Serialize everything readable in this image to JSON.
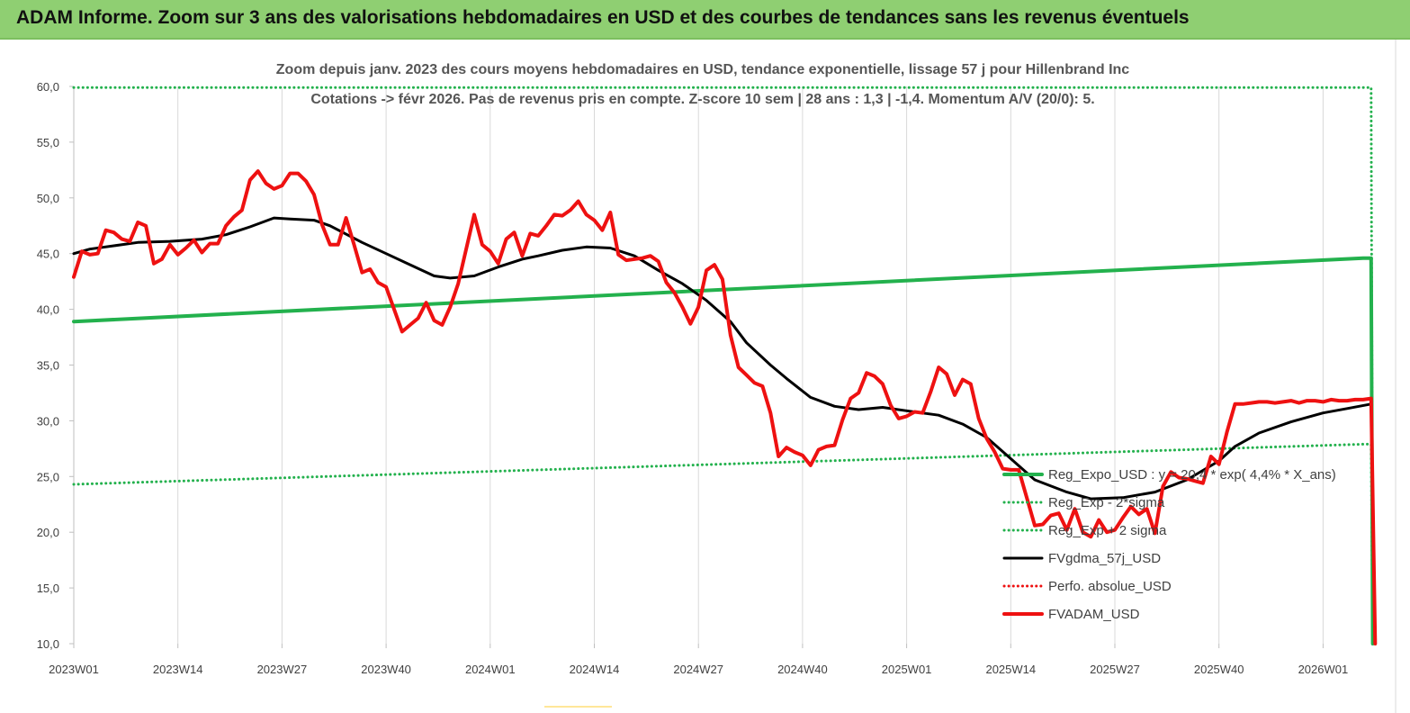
{
  "header": {
    "title": "ADAM Informe. Zoom sur 3 ans des valorisations hebdomadaires en USD et des courbes de tendances sans les revenus éventuels"
  },
  "chart_data": {
    "type": "line",
    "title_line1": "Zoom depuis janv. 2023 des cours moyens hebdomadaires en USD, tendance exponentielle, lissage 57 j pour Hillenbrand Inc",
    "title_line2": "Cotations -> févr 2026.  Pas de revenus pris en compte. Z-score 10 sem  | 28 ans : 1,3 | -1,4. Momentum A/V (20/0): 5.",
    "x_tick_labels": [
      "2023W01",
      "2023W14",
      "2023W27",
      "2023W40",
      "2024W01",
      "2024W14",
      "2024W27",
      "2024W40",
      "2025W01",
      "2025W14",
      "2025W27",
      "2025W40",
      "2026W01"
    ],
    "y_tick_labels": [
      "10,0",
      "15,0",
      "20,0",
      "25,0",
      "30,0",
      "35,0",
      "40,0",
      "45,0",
      "50,0",
      "55,0",
      "60,0"
    ],
    "ylim": [
      10,
      60
    ],
    "x_unit": "week index from 2023W01",
    "grid": "vertical",
    "legend_position": "bottom-right",
    "colors": {
      "green": "#23b14d",
      "black": "#000000",
      "red": "#ee1111",
      "header": "#8fcf72"
    },
    "series": [
      {
        "name": "Reg_Expo_USD : y = 20,4 * exp( 4,4% *  X_ans)",
        "style": "solid-thick",
        "color": "#23b14d",
        "points": [
          [
            0,
            38.9
          ],
          [
            161,
            44.6
          ],
          [
            162,
            44.6
          ],
          [
            162.2,
            10.0
          ]
        ]
      },
      {
        "name": "Reg_Exp - 2*sigma",
        "style": "dotted",
        "color": "#23b14d",
        "points": [
          [
            0,
            24.3
          ],
          [
            161,
            27.9
          ],
          [
            162,
            27.9
          ],
          [
            162.2,
            10.0
          ]
        ]
      },
      {
        "name": "Reg_Exp + 2 sigma",
        "style": "dotted",
        "color": "#23b14d",
        "points": [
          [
            0,
            59.9
          ],
          [
            162,
            59.9
          ],
          [
            162.2,
            10.0
          ]
        ]
      },
      {
        "name": "FVgdma_57j_USD",
        "style": "solid",
        "color": "#000000",
        "points": [
          [
            0,
            45.0
          ],
          [
            2,
            45.4
          ],
          [
            5,
            45.7
          ],
          [
            8,
            46.0
          ],
          [
            12,
            46.1
          ],
          [
            16,
            46.3
          ],
          [
            19,
            46.7
          ],
          [
            22,
            47.4
          ],
          [
            25,
            48.2
          ],
          [
            27,
            48.1
          ],
          [
            30,
            48.0
          ],
          [
            32,
            47.5
          ],
          [
            36,
            46.0
          ],
          [
            39,
            45.0
          ],
          [
            42,
            44.0
          ],
          [
            45,
            43.0
          ],
          [
            47,
            42.8
          ],
          [
            50,
            43.0
          ],
          [
            53,
            43.8
          ],
          [
            56,
            44.5
          ],
          [
            58,
            44.8
          ],
          [
            61,
            45.3
          ],
          [
            64,
            45.6
          ],
          [
            67,
            45.5
          ],
          [
            70,
            44.8
          ],
          [
            73,
            43.5
          ],
          [
            76,
            42.3
          ],
          [
            79,
            40.8
          ],
          [
            82,
            38.9
          ],
          [
            84,
            37.0
          ],
          [
            87,
            35.0
          ],
          [
            89,
            33.8
          ],
          [
            92,
            32.1
          ],
          [
            95,
            31.3
          ],
          [
            98,
            31.0
          ],
          [
            101,
            31.2
          ],
          [
            104,
            30.9
          ],
          [
            108,
            30.5
          ],
          [
            111,
            29.7
          ],
          [
            114,
            28.5
          ],
          [
            117,
            26.6
          ],
          [
            120,
            24.7
          ],
          [
            124,
            23.6
          ],
          [
            127,
            23.0
          ],
          [
            131,
            23.1
          ],
          [
            135,
            23.6
          ],
          [
            139,
            24.7
          ],
          [
            143,
            26.4
          ],
          [
            145,
            27.7
          ],
          [
            148,
            28.9
          ],
          [
            152,
            29.9
          ],
          [
            156,
            30.7
          ],
          [
            159,
            31.1
          ],
          [
            162,
            31.5
          ]
        ]
      },
      {
        "name": "Perfo. absolue_USD",
        "style": "dotted",
        "color": "#ee1111",
        "points": []
      },
      {
        "name": "FVADAM_USD",
        "style": "solid-thick",
        "color": "#ee1111",
        "points": [
          [
            0,
            42.9
          ],
          [
            1,
            45.2
          ],
          [
            2,
            44.9
          ],
          [
            3,
            45.0
          ],
          [
            4,
            47.1
          ],
          [
            5,
            46.9
          ],
          [
            6,
            46.3
          ],
          [
            7,
            46.1
          ],
          [
            8,
            47.8
          ],
          [
            9,
            47.5
          ],
          [
            10,
            44.1
          ],
          [
            11,
            44.5
          ],
          [
            12,
            45.8
          ],
          [
            13,
            44.9
          ],
          [
            14,
            45.5
          ],
          [
            15,
            46.2
          ],
          [
            16,
            45.1
          ],
          [
            17,
            45.9
          ],
          [
            18,
            45.9
          ],
          [
            19,
            47.5
          ],
          [
            20,
            48.3
          ],
          [
            21,
            48.9
          ],
          [
            22,
            51.6
          ],
          [
            23,
            52.4
          ],
          [
            24,
            51.3
          ],
          [
            25,
            50.8
          ],
          [
            26,
            51.1
          ],
          [
            27,
            52.2
          ],
          [
            28,
            52.2
          ],
          [
            29,
            51.5
          ],
          [
            30,
            50.3
          ],
          [
            31,
            47.6
          ],
          [
            32,
            45.8
          ],
          [
            33,
            45.8
          ],
          [
            34,
            48.2
          ],
          [
            35,
            45.8
          ],
          [
            36,
            43.3
          ],
          [
            37,
            43.6
          ],
          [
            38,
            42.4
          ],
          [
            39,
            42.0
          ],
          [
            40,
            40.0
          ],
          [
            41,
            38.0
          ],
          [
            42,
            38.6
          ],
          [
            43,
            39.2
          ],
          [
            44,
            40.6
          ],
          [
            45,
            39.0
          ],
          [
            46,
            38.6
          ],
          [
            47,
            40.2
          ],
          [
            48,
            42.3
          ],
          [
            49,
            45.4
          ],
          [
            50,
            48.5
          ],
          [
            51,
            45.8
          ],
          [
            52,
            45.2
          ],
          [
            53,
            44.1
          ],
          [
            54,
            46.3
          ],
          [
            55,
            46.9
          ],
          [
            56,
            44.8
          ],
          [
            57,
            46.8
          ],
          [
            58,
            46.6
          ],
          [
            59,
            47.5
          ],
          [
            60,
            48.5
          ],
          [
            61,
            48.4
          ],
          [
            62,
            48.9
          ],
          [
            63,
            49.7
          ],
          [
            64,
            48.5
          ],
          [
            65,
            48.0
          ],
          [
            66,
            47.1
          ],
          [
            67,
            48.7
          ],
          [
            68,
            44.9
          ],
          [
            69,
            44.4
          ],
          [
            70,
            44.5
          ],
          [
            71,
            44.6
          ],
          [
            72,
            44.8
          ],
          [
            73,
            44.3
          ],
          [
            74,
            42.4
          ],
          [
            75,
            41.5
          ],
          [
            76,
            40.2
          ],
          [
            77,
            38.7
          ],
          [
            78,
            40.2
          ],
          [
            79,
            43.5
          ],
          [
            80,
            44.0
          ],
          [
            81,
            42.7
          ],
          [
            82,
            37.7
          ],
          [
            83,
            34.8
          ],
          [
            84,
            34.1
          ],
          [
            85,
            33.4
          ],
          [
            86,
            33.1
          ],
          [
            87,
            30.7
          ],
          [
            88,
            26.8
          ],
          [
            89,
            27.6
          ],
          [
            90,
            27.2
          ],
          [
            91,
            26.9
          ],
          [
            92,
            26.0
          ],
          [
            93,
            27.4
          ],
          [
            94,
            27.7
          ],
          [
            95,
            27.8
          ],
          [
            96,
            30.1
          ],
          [
            97,
            32.0
          ],
          [
            98,
            32.5
          ],
          [
            99,
            34.3
          ],
          [
            100,
            34.0
          ],
          [
            101,
            33.3
          ],
          [
            102,
            31.4
          ],
          [
            103,
            30.2
          ],
          [
            104,
            30.4
          ],
          [
            105,
            30.8
          ],
          [
            106,
            30.7
          ],
          [
            107,
            32.6
          ],
          [
            108,
            34.8
          ],
          [
            109,
            34.2
          ],
          [
            110,
            32.3
          ],
          [
            111,
            33.7
          ],
          [
            112,
            33.3
          ],
          [
            113,
            30.2
          ],
          [
            114,
            28.4
          ],
          [
            115,
            27.2
          ],
          [
            116,
            25.7
          ],
          [
            117,
            25.6
          ],
          [
            118,
            25.6
          ],
          [
            119,
            23.1
          ],
          [
            120,
            20.6
          ],
          [
            121,
            20.7
          ],
          [
            122,
            21.5
          ],
          [
            123,
            21.7
          ],
          [
            124,
            20.2
          ],
          [
            125,
            22.1
          ],
          [
            126,
            20.0
          ],
          [
            127,
            19.6
          ],
          [
            128,
            21.1
          ],
          [
            129,
            20.0
          ],
          [
            130,
            20.2
          ],
          [
            131,
            21.3
          ],
          [
            132,
            22.3
          ],
          [
            133,
            21.6
          ],
          [
            134,
            22.1
          ],
          [
            135,
            19.9
          ],
          [
            136,
            24.1
          ],
          [
            137,
            25.4
          ],
          [
            138,
            24.9
          ],
          [
            139,
            24.8
          ],
          [
            140,
            24.6
          ],
          [
            141,
            24.4
          ],
          [
            142,
            26.8
          ],
          [
            143,
            26.1
          ],
          [
            144,
            29.0
          ],
          [
            145,
            31.5
          ],
          [
            146,
            31.5
          ],
          [
            147,
            31.6
          ],
          [
            148,
            31.7
          ],
          [
            149,
            31.7
          ],
          [
            150,
            31.6
          ],
          [
            151,
            31.7
          ],
          [
            152,
            31.8
          ],
          [
            153,
            31.6
          ],
          [
            154,
            31.8
          ],
          [
            155,
            31.8
          ],
          [
            156,
            31.7
          ],
          [
            157,
            31.9
          ],
          [
            158,
            31.8
          ],
          [
            159,
            31.8
          ],
          [
            160,
            31.9
          ],
          [
            161,
            31.9
          ],
          [
            162,
            32.0
          ],
          [
            162.5,
            10.0
          ]
        ]
      }
    ]
  }
}
